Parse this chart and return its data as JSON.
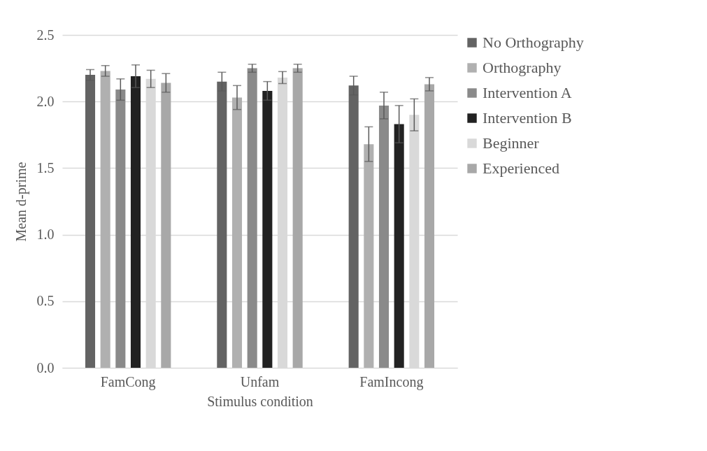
{
  "chart_data": {
    "type": "bar",
    "xlabel": "Stimulus condition",
    "ylabel": "Mean d-prime",
    "categories": [
      "FamCong",
      "Unfam",
      "FamIncong"
    ],
    "series": [
      {
        "name": "No Orthography",
        "color": "#636363",
        "values": [
          2.2,
          2.15,
          2.12
        ],
        "errors": [
          0.04,
          0.07,
          0.07
        ]
      },
      {
        "name": "Orthography",
        "color": "#b0b0b0",
        "values": [
          2.23,
          2.03,
          1.68
        ],
        "errors": [
          0.04,
          0.09,
          0.13
        ]
      },
      {
        "name": "Intervention A",
        "color": "#8a8a8a",
        "values": [
          2.09,
          2.25,
          1.97
        ],
        "errors": [
          0.08,
          0.03,
          0.1
        ]
      },
      {
        "name": "Intervention B",
        "color": "#222222",
        "values": [
          2.19,
          2.08,
          1.83
        ],
        "errors": [
          0.085,
          0.07,
          0.14
        ]
      },
      {
        "name": "Beginner",
        "color": "#d9d9d9",
        "values": [
          2.17,
          2.18,
          1.9
        ],
        "errors": [
          0.065,
          0.045,
          0.12
        ]
      },
      {
        "name": "Experienced",
        "color": "#a8a8a8",
        "values": [
          2.14,
          2.25,
          2.13
        ],
        "errors": [
          0.07,
          0.03,
          0.05
        ]
      }
    ],
    "ylim": [
      0,
      2.5
    ],
    "yticks": [
      {
        "value": 0,
        "label": "0.0"
      },
      {
        "value": 0.5,
        "label": "0.5"
      },
      {
        "value": 1,
        "label": "1.0"
      },
      {
        "value": 1.5,
        "label": "1.5"
      },
      {
        "value": 2,
        "label": "2.0"
      },
      {
        "value": 2.5,
        "label": "2.5"
      }
    ],
    "grid": "y",
    "legend": "right"
  }
}
